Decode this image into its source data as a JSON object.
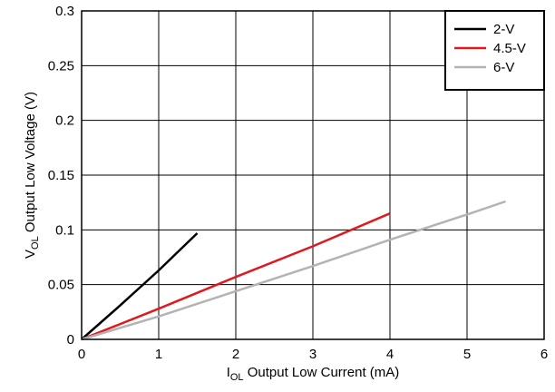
{
  "chart_data": {
    "type": "line",
    "xlim": [
      0,
      6
    ],
    "ylim": [
      0,
      0.3
    ],
    "x_ticks": [
      "0",
      "1",
      "2",
      "3",
      "4",
      "5",
      "6"
    ],
    "y_ticks": [
      "0",
      "0.05",
      "0.1",
      "0.15",
      "0.2",
      "0.25",
      "0.3"
    ],
    "xlabel": {
      "pre": "I",
      "sub": "OL",
      "post": " Output Low Current (mA)"
    },
    "ylabel": {
      "pre": "V",
      "sub": "OL",
      "post": " Output Low Voltage (V)"
    },
    "grid": true,
    "legend_position": "top-right",
    "series": [
      {
        "name": "2-V",
        "color": "#000000",
        "x": [
          0,
          0.5,
          1.0,
          1.5
        ],
        "y": [
          0,
          0.031,
          0.063,
          0.097
        ]
      },
      {
        "name": "4.5-V",
        "color": "#e0191f",
        "x": [
          0,
          1,
          2,
          3,
          4
        ],
        "y": [
          0,
          0.028,
          0.057,
          0.085,
          0.115
        ]
      },
      {
        "name": "6-V",
        "color": "#b3b3b3",
        "x": [
          0,
          1,
          2,
          3,
          4,
          5,
          5.5
        ],
        "y": [
          0,
          0.021,
          0.044,
          0.067,
          0.091,
          0.114,
          0.126
        ]
      }
    ]
  }
}
